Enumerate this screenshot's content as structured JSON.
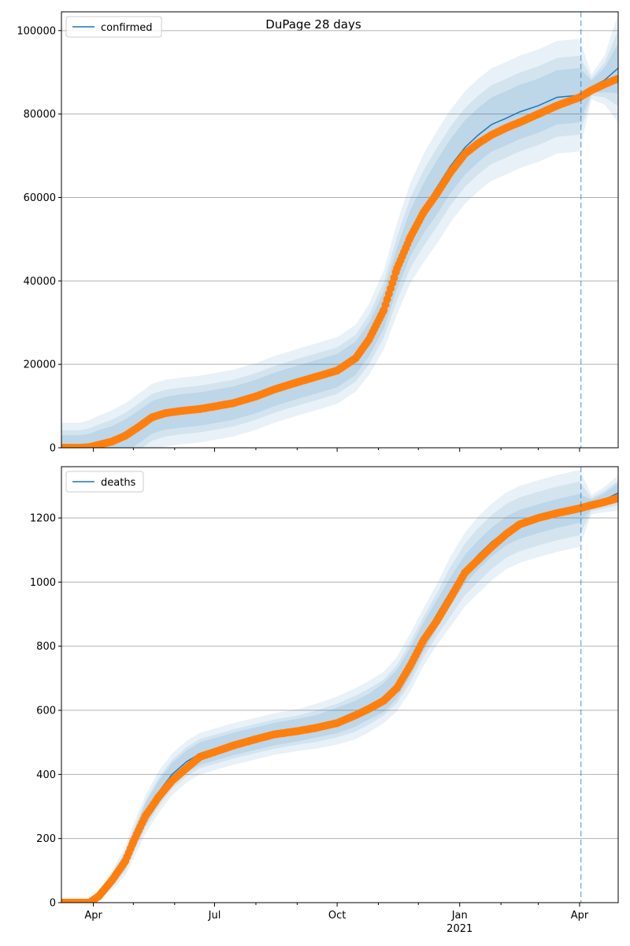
{
  "figure": {
    "title": "DuPage 28 days"
  },
  "colors": {
    "observed": "#ff7f0e",
    "forecast": "#1f77b4",
    "band": "#1f77b4",
    "grid": "#b0b0b0",
    "axis": "#000000"
  },
  "chart_data": [
    {
      "type": "line",
      "title": "DuPage 28 days",
      "legend": {
        "label": "confirmed",
        "placement": "top-left"
      },
      "xlim": [
        "2020-03-08",
        "2021-04-30"
      ],
      "ylim": [
        0,
        104500
      ],
      "yticks": [
        0,
        20000,
        40000,
        60000,
        80000,
        100000
      ],
      "ytick_labels": [
        "0",
        "20000",
        "40000",
        "60000",
        "80000",
        "100000"
      ],
      "grid": "horizontal",
      "forecast_start": "2021-04-02",
      "observed": {
        "x": [
          "2020-03-08",
          "2020-03-15",
          "2020-03-22",
          "2020-03-29",
          "2020-04-05",
          "2020-04-15",
          "2020-04-25",
          "2020-05-05",
          "2020-05-15",
          "2020-05-25",
          "2020-06-05",
          "2020-06-20",
          "2020-07-01",
          "2020-07-15",
          "2020-08-01",
          "2020-08-15",
          "2020-09-01",
          "2020-09-15",
          "2020-10-01",
          "2020-10-15",
          "2020-10-25",
          "2020-11-05",
          "2020-11-15",
          "2020-11-25",
          "2020-12-05",
          "2020-12-15",
          "2020-12-25",
          "2021-01-05",
          "2021-01-15",
          "2021-01-25",
          "2021-02-05",
          "2021-02-15",
          "2021-03-01",
          "2021-03-15",
          "2021-04-01",
          "2021-04-10",
          "2021-04-20",
          "2021-04-30"
        ],
        "y": [
          0,
          0,
          0,
          150,
          700,
          1500,
          2900,
          5000,
          7300,
          8300,
          8800,
          9300,
          9900,
          10700,
          12300,
          14000,
          15700,
          17000,
          18500,
          21500,
          26000,
          33000,
          43000,
          50500,
          56500,
          61000,
          66000,
          70500,
          73000,
          75000,
          76700,
          78000,
          80000,
          82000,
          84000,
          85700,
          87200,
          88500
        ]
      },
      "forecast": {
        "x": [
          "2020-03-08",
          "2020-03-15",
          "2020-03-22",
          "2020-03-29",
          "2020-04-05",
          "2020-04-15",
          "2020-04-25",
          "2020-05-05",
          "2020-05-15",
          "2020-05-25",
          "2020-06-05",
          "2020-06-20",
          "2020-07-01",
          "2020-07-15",
          "2020-08-01",
          "2020-08-15",
          "2020-09-01",
          "2020-09-15",
          "2020-10-01",
          "2020-10-15",
          "2020-10-25",
          "2020-11-05",
          "2020-11-15",
          "2020-11-25",
          "2020-12-05",
          "2020-12-15",
          "2020-12-25",
          "2021-01-05",
          "2021-01-15",
          "2021-01-25",
          "2021-02-05",
          "2021-02-15",
          "2021-03-01",
          "2021-03-15",
          "2021-04-01",
          "2021-04-10",
          "2021-04-20",
          "2021-04-30"
        ],
        "y": [
          0,
          0,
          0,
          150,
          700,
          1500,
          2900,
          5000,
          7300,
          8300,
          8800,
          9300,
          9900,
          10700,
          12300,
          14000,
          15700,
          17000,
          18500,
          21500,
          26000,
          33000,
          43000,
          51500,
          57500,
          62500,
          67500,
          72000,
          75000,
          77500,
          79000,
          80500,
          82000,
          84000,
          84500,
          86500,
          88200,
          91000
        ],
        "band_50": [
          3000,
          3000,
          3000,
          3200,
          3500,
          3700,
          3900,
          3900,
          3900,
          3900,
          4000,
          4000,
          4000,
          4000,
          4000,
          4000,
          4000,
          4000,
          4000,
          4000,
          4000,
          4500,
          5000,
          5500,
          6000,
          6500,
          6500,
          6500,
          6500,
          6500,
          6500,
          6500,
          6500,
          6500,
          6500,
          1500,
          3000,
          6000
        ],
        "band_95": [
          6000,
          6000,
          6000,
          6500,
          7000,
          7500,
          7800,
          8000,
          8000,
          8000,
          8000,
          8000,
          8000,
          8000,
          8000,
          8000,
          8000,
          8000,
          8000,
          8000,
          8500,
          9500,
          11000,
          12000,
          13000,
          13500,
          13500,
          13500,
          13500,
          13500,
          13500,
          13500,
          13500,
          13500,
          13500,
          3000,
          6000,
          13000
        ]
      }
    },
    {
      "type": "line",
      "legend": {
        "label": "deaths",
        "placement": "top-left"
      },
      "xlim": [
        "2020-03-08",
        "2021-04-30"
      ],
      "ylim": [
        0,
        1360
      ],
      "yticks": [
        0,
        200,
        400,
        600,
        800,
        1000,
        1200
      ],
      "ytick_labels": [
        "0",
        "200",
        "400",
        "600",
        "800",
        "1000",
        "1200"
      ],
      "grid": "horizontal",
      "forecast_start": "2021-04-02",
      "xticks": [
        "2020-04-01",
        "2020-07-01",
        "2020-10-01",
        "2021-01-01",
        "2021-04-01"
      ],
      "xtick_labels": [
        "Apr",
        "Jul",
        "Oct",
        "Jan",
        "Apr"
      ],
      "year_label": {
        "text": "2021",
        "x": "2021-01-01"
      },
      "minor_xticks": [
        "2020-05-01",
        "2020-06-01",
        "2020-08-01",
        "2020-09-01",
        "2020-11-01",
        "2020-12-01",
        "2021-02-01",
        "2021-03-01"
      ],
      "observed": {
        "x": [
          "2020-03-08",
          "2020-03-20",
          "2020-03-29",
          "2020-04-05",
          "2020-04-15",
          "2020-04-25",
          "2020-05-01",
          "2020-05-10",
          "2020-05-20",
          "2020-05-30",
          "2020-06-10",
          "2020-06-20",
          "2020-07-01",
          "2020-07-15",
          "2020-08-01",
          "2020-08-15",
          "2020-09-01",
          "2020-09-15",
          "2020-10-01",
          "2020-10-15",
          "2020-10-25",
          "2020-11-05",
          "2020-11-15",
          "2020-11-25",
          "2020-12-05",
          "2020-12-15",
          "2020-12-25",
          "2021-01-05",
          "2021-01-15",
          "2021-01-25",
          "2021-02-05",
          "2021-02-15",
          "2021-03-01",
          "2021-03-15",
          "2021-04-01",
          "2021-04-10",
          "2021-04-20",
          "2021-04-30"
        ],
        "y": [
          0,
          0,
          0,
          20,
          70,
          130,
          190,
          270,
          330,
          380,
          420,
          455,
          470,
          490,
          510,
          525,
          535,
          545,
          560,
          585,
          605,
          630,
          670,
          740,
          820,
          880,
          950,
          1030,
          1070,
          1110,
          1150,
          1180,
          1200,
          1215,
          1230,
          1240,
          1250,
          1262
        ]
      },
      "forecast": {
        "x": [
          "2020-03-08",
          "2020-03-20",
          "2020-03-29",
          "2020-04-05",
          "2020-04-15",
          "2020-04-25",
          "2020-05-01",
          "2020-05-10",
          "2020-05-20",
          "2020-05-30",
          "2020-06-10",
          "2020-06-20",
          "2020-07-01",
          "2020-07-15",
          "2020-08-01",
          "2020-08-15",
          "2020-09-01",
          "2020-09-15",
          "2020-10-01",
          "2020-10-15",
          "2020-10-25",
          "2020-11-05",
          "2020-11-15",
          "2020-11-25",
          "2020-12-05",
          "2020-12-15",
          "2020-12-25",
          "2021-01-05",
          "2021-01-15",
          "2021-01-25",
          "2021-02-05",
          "2021-02-15",
          "2021-03-01",
          "2021-03-15",
          "2021-04-01",
          "2021-04-10",
          "2021-04-20",
          "2021-04-30"
        ],
        "y": [
          0,
          0,
          0,
          20,
          70,
          130,
          190,
          275,
          345,
          400,
          440,
          465,
          478,
          495,
          512,
          526,
          538,
          550,
          568,
          590,
          612,
          640,
          682,
          750,
          830,
          900,
          970,
          1040,
          1085,
          1125,
          1160,
          1180,
          1198,
          1214,
          1230,
          1242,
          1258,
          1278
        ],
        "band_50": [
          0,
          0,
          0,
          5,
          15,
          25,
          30,
          35,
          35,
          35,
          35,
          35,
          35,
          35,
          35,
          35,
          35,
          35,
          40,
          40,
          40,
          45,
          45,
          45,
          45,
          45,
          45,
          45,
          45,
          45,
          45,
          45,
          45,
          45,
          45,
          15,
          20,
          30
        ],
        "band_95": [
          0,
          0,
          0,
          10,
          30,
          45,
          55,
          60,
          65,
          65,
          65,
          65,
          65,
          65,
          65,
          65,
          65,
          70,
          75,
          80,
          80,
          80,
          85,
          90,
          90,
          95,
          110,
          115,
          120,
          120,
          120,
          120,
          120,
          120,
          120,
          30,
          40,
          55
        ]
      }
    }
  ]
}
